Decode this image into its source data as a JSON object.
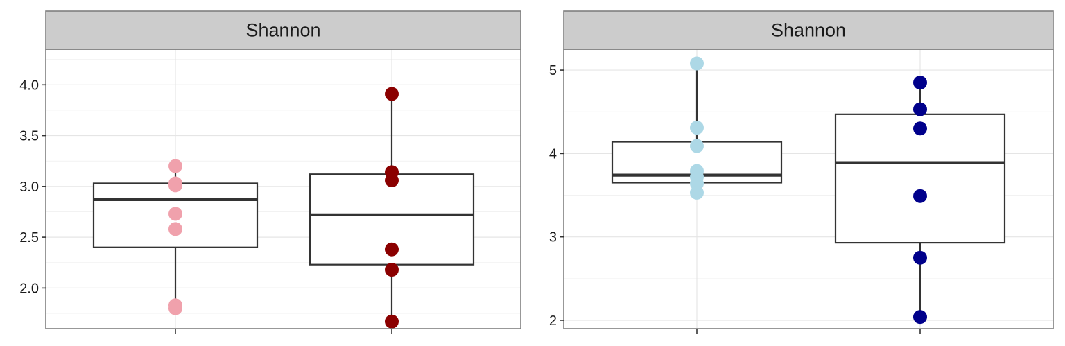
{
  "chart_data": [
    {
      "type": "box",
      "title": "",
      "xlabel": "",
      "ylabel": "",
      "panel_label": "Shannon",
      "ylim": [
        1.6,
        4.35
      ],
      "yticks": [
        2.0,
        2.5,
        3.0,
        3.5,
        4.0
      ],
      "ytick_labels": [
        "2.0",
        "2.5",
        "3.0",
        "3.5",
        "4.0"
      ],
      "grid": true,
      "groups": [
        {
          "color": "#f0a1ac",
          "box": {
            "lower_whisker": 1.82,
            "q1": 2.4,
            "median": 2.87,
            "q3": 3.03,
            "upper_whisker": 3.2
          },
          "points": [
            3.2,
            3.03,
            3.01,
            2.73,
            2.58,
            1.83,
            1.8
          ]
        },
        {
          "color": "#8b0000",
          "box": {
            "lower_whisker": 1.67,
            "q1": 2.23,
            "median": 2.72,
            "q3": 3.12,
            "upper_whisker": 3.91
          },
          "points": [
            3.91,
            3.14,
            3.06,
            2.38,
            2.18,
            1.67
          ]
        }
      ]
    },
    {
      "type": "box",
      "title": "",
      "xlabel": "",
      "ylabel": "",
      "panel_label": "Shannon",
      "ylim": [
        1.9,
        5.25
      ],
      "yticks": [
        2,
        3,
        4,
        5
      ],
      "ytick_labels": [
        "2",
        "3",
        "4",
        "5"
      ],
      "grid": true,
      "groups": [
        {
          "color": "#add8e6",
          "box": {
            "lower_whisker": 3.53,
            "q1": 3.65,
            "median": 3.74,
            "q3": 4.14,
            "upper_whisker": 5.08
          },
          "points": [
            5.08,
            4.31,
            4.09,
            3.79,
            3.72,
            3.64,
            3.53
          ]
        },
        {
          "color": "#00008b",
          "box": {
            "lower_whisker": 2.04,
            "q1": 2.93,
            "median": 3.89,
            "q3": 4.47,
            "upper_whisker": 4.85
          },
          "points": [
            4.85,
            4.53,
            4.3,
            3.49,
            2.75,
            2.04
          ]
        }
      ]
    }
  ]
}
